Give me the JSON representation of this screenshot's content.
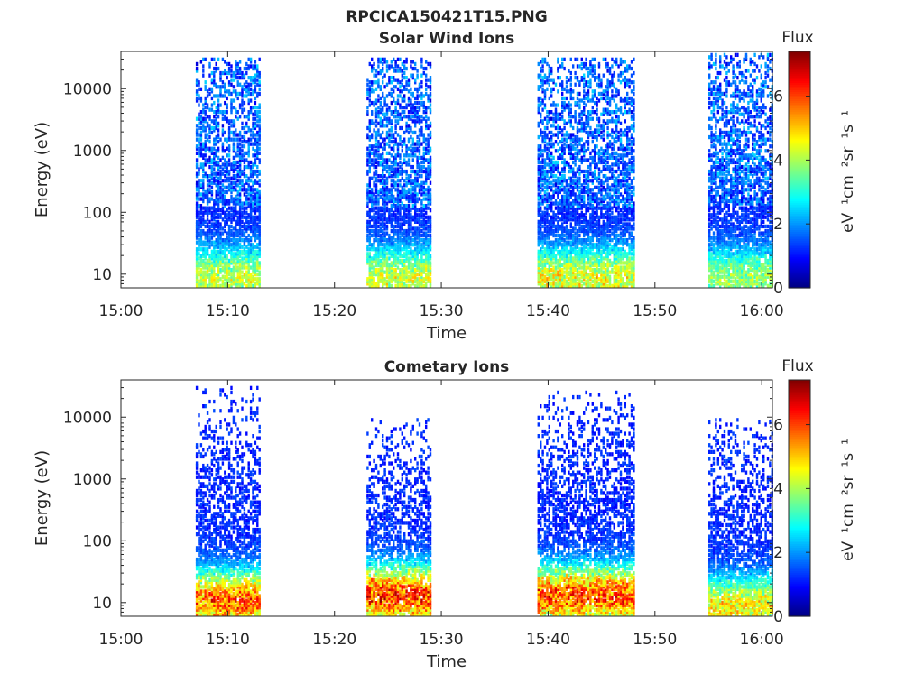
{
  "figure_title": "RPCICA150421T15.PNG",
  "chart_data": [
    {
      "type": "heatmap",
      "title": "Solar Wind Ions",
      "xlabel": "Time",
      "ylabel": "Energy (eV)",
      "yscale": "log",
      "x_range": [
        "15:00",
        "16:01"
      ],
      "ylim": [
        6,
        40000
      ],
      "x_ticks": [
        "15:00",
        "15:10",
        "15:20",
        "15:30",
        "15:40",
        "15:50",
        "16:00"
      ],
      "y_ticks": [
        "10",
        "100",
        "1000",
        "10000"
      ],
      "y_tick_values": [
        10,
        100,
        1000,
        10000
      ],
      "colorbar": {
        "title": "Flux",
        "label": "eV⁻¹cm⁻²sr⁻¹s⁻¹",
        "range": [
          0,
          7.4
        ],
        "ticks": [
          "0",
          "2",
          "4",
          "6"
        ],
        "tick_values": [
          0,
          2,
          4,
          6
        ],
        "colormap": "jet"
      },
      "bursts": [
        {
          "start": "15:07",
          "end": "15:13",
          "energy_low": 6,
          "energy_high": 30000,
          "peak_flux": 5.0,
          "peak_energy": 8
        },
        {
          "start": "15:23",
          "end": "15:29",
          "energy_low": 6,
          "energy_high": 30000,
          "peak_flux": 5.0,
          "peak_energy": 8
        },
        {
          "start": "15:39",
          "end": "15:48",
          "energy_low": 6,
          "energy_high": 30000,
          "peak_flux": 5.3,
          "peak_energy": 8
        },
        {
          "start": "15:55",
          "end": "16:01",
          "energy_low": 6,
          "energy_high": 35000,
          "peak_flux": 4.5,
          "peak_energy": 8
        }
      ]
    },
    {
      "type": "heatmap",
      "title": "Cometary Ions",
      "xlabel": "Time",
      "ylabel": "Energy (eV)",
      "yscale": "log",
      "x_range": [
        "15:00",
        "16:01"
      ],
      "ylim": [
        6,
        40000
      ],
      "x_ticks": [
        "15:00",
        "15:10",
        "15:20",
        "15:30",
        "15:40",
        "15:50",
        "16:00"
      ],
      "y_ticks": [
        "10",
        "100",
        "1000",
        "10000"
      ],
      "y_tick_values": [
        10,
        100,
        1000,
        10000
      ],
      "colorbar": {
        "title": "Flux",
        "label": "eV⁻¹cm⁻²sr⁻¹s⁻¹",
        "range": [
          0,
          7.4
        ],
        "ticks": [
          "0",
          "2",
          "4",
          "6"
        ],
        "tick_values": [
          0,
          2,
          4,
          6
        ],
        "colormap": "jet"
      },
      "bursts": [
        {
          "start": "15:07",
          "end": "15:13",
          "energy_low": 6,
          "energy_high": 30000,
          "peak_flux": 6.8,
          "peak_energy": 10
        },
        {
          "start": "15:23",
          "end": "15:29",
          "energy_low": 6,
          "energy_high": 9000,
          "peak_flux": 7.2,
          "peak_energy": 12
        },
        {
          "start": "15:39",
          "end": "15:48",
          "energy_low": 6,
          "energy_high": 25000,
          "peak_flux": 7.0,
          "peak_energy": 12
        },
        {
          "start": "15:55",
          "end": "16:01",
          "energy_low": 6,
          "energy_high": 9000,
          "peak_flux": 5.5,
          "peak_energy": 8
        }
      ]
    }
  ]
}
